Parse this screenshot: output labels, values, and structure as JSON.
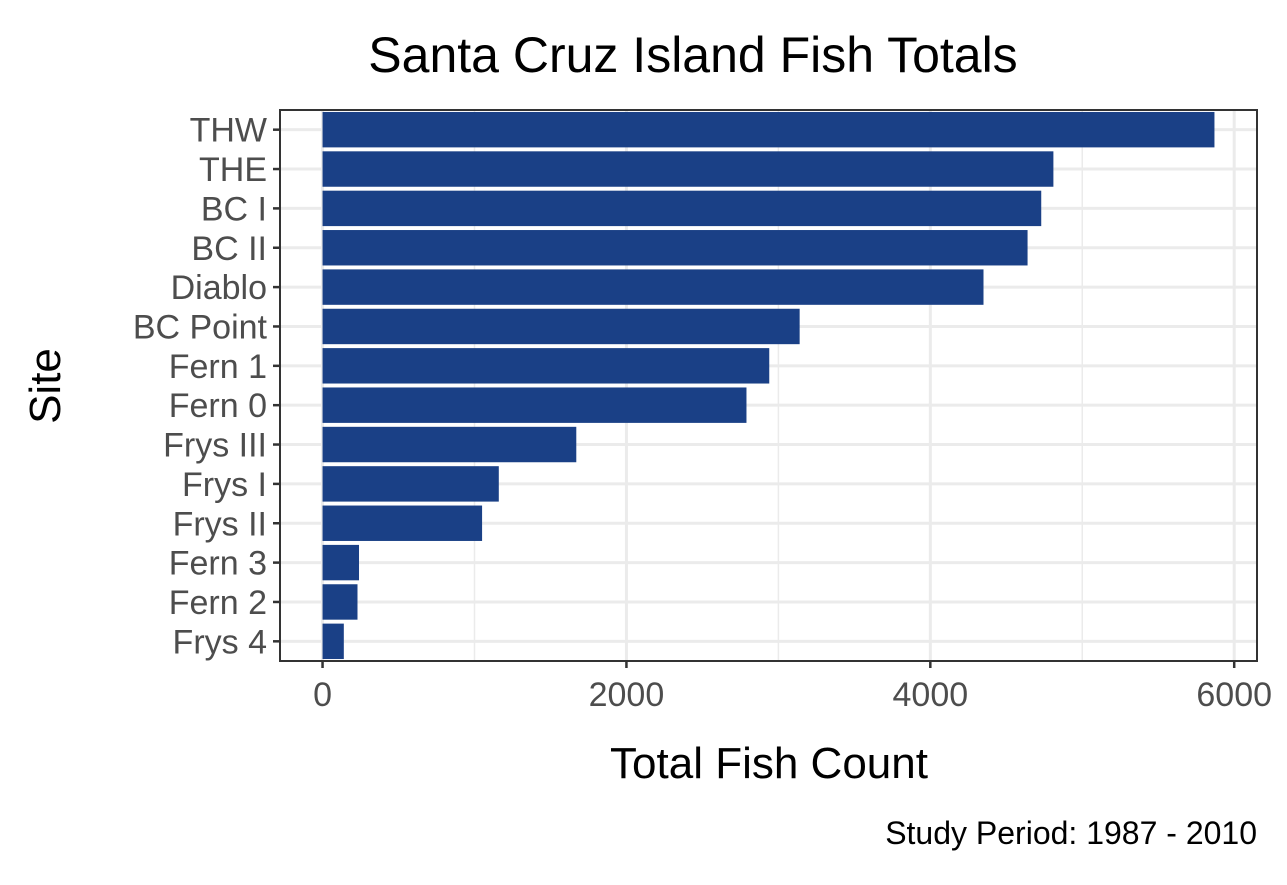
{
  "chart_data": {
    "type": "bar",
    "orientation": "horizontal",
    "title": "Santa Cruz Island Fish Totals",
    "xlabel": "Total Fish Count",
    "ylabel": "Site",
    "caption": "Study Period: 1987 - 2010",
    "categories": [
      "THW",
      "THE",
      "BC I",
      "BC II",
      "Diablo",
      "BC Point",
      "Fern 1",
      "Fern 0",
      "Frys III",
      "Frys I",
      "Frys II",
      "Fern 3",
      "Fern 2",
      "Frys 4"
    ],
    "values": [
      5870,
      4810,
      4730,
      4640,
      4350,
      3140,
      2940,
      2790,
      1670,
      1160,
      1050,
      240,
      230,
      140
    ],
    "xlim": [
      -280,
      6150
    ],
    "xticks": [
      0,
      2000,
      4000,
      6000
    ],
    "xtick_labels": [
      "0",
      "2000",
      "4000",
      "6000"
    ],
    "bar_color": "#1a4086",
    "grid": true,
    "grid_color": "#ebebeb",
    "panel_border_color": "#333333"
  }
}
